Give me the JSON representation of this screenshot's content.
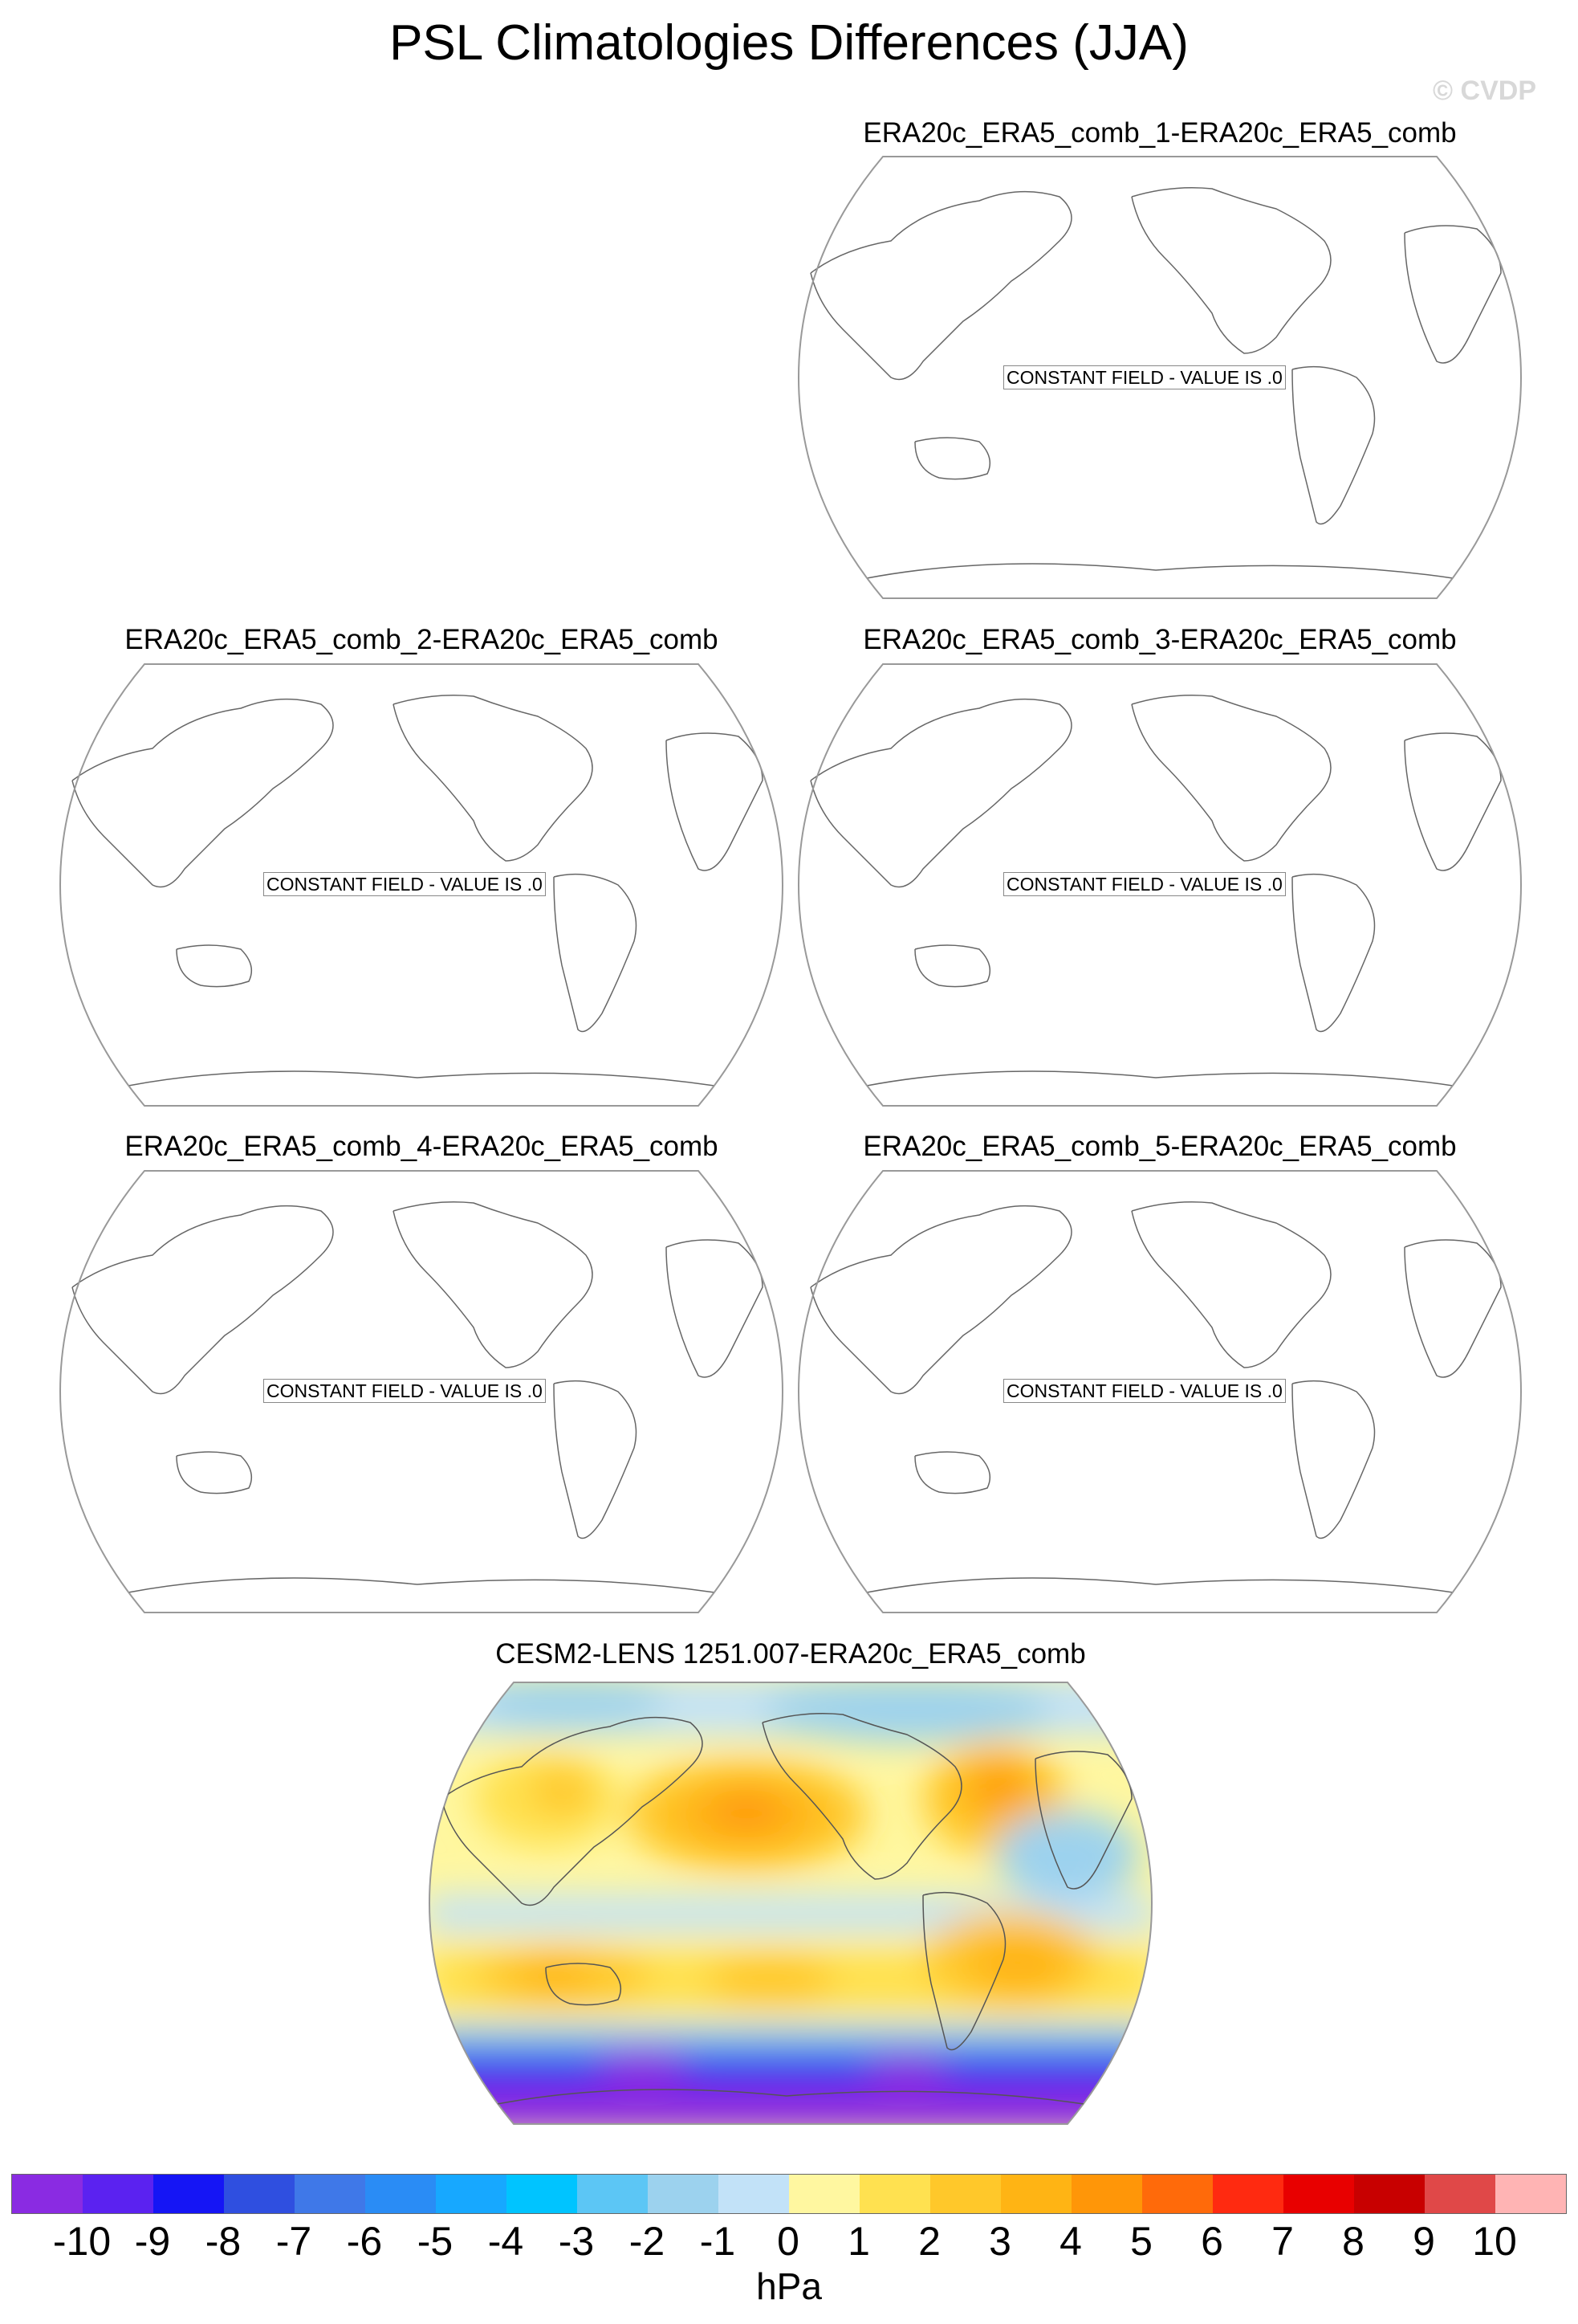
{
  "title": "PSL Climatologies Differences (JJA)",
  "copyright": "© CVDP",
  "panels": [
    {
      "title": "ERA20c_ERA5_comb_1-ERA20c_ERA5_comb",
      "note": "CONSTANT FIELD - VALUE IS .0"
    },
    {
      "title": "ERA20c_ERA5_comb_2-ERA20c_ERA5_comb",
      "note": "CONSTANT FIELD - VALUE IS .0"
    },
    {
      "title": "ERA20c_ERA5_comb_3-ERA20c_ERA5_comb",
      "note": "CONSTANT FIELD - VALUE IS .0"
    },
    {
      "title": "ERA20c_ERA5_comb_4-ERA20c_ERA5_comb",
      "note": "CONSTANT FIELD - VALUE IS .0"
    },
    {
      "title": "ERA20c_ERA5_comb_5-ERA20c_ERA5_comb",
      "note": "CONSTANT FIELD - VALUE IS .0"
    },
    {
      "title": "CESM2-LENS 1251.007-ERA20c_ERA5_comb",
      "note": ""
    }
  ],
  "colorbar": {
    "colors": [
      "#8a2be2",
      "#5b22f0",
      "#1515f5",
      "#2f4fe0",
      "#3f78e8",
      "#2a8cf5",
      "#17a8ff",
      "#00c4ff",
      "#5cc6f5",
      "#9cd2ee",
      "#c2e2f8",
      "#fff7a0",
      "#ffe150",
      "#ffc82a",
      "#ffb414",
      "#ff9608",
      "#ff6a0a",
      "#ff2a10",
      "#e80000",
      "#c80000",
      "#e04848",
      "#ffb4b4"
    ],
    "tick_labels": [
      "-10",
      "-9",
      "-8",
      "-7",
      "-6",
      "-5",
      "-4",
      "-3",
      "-2",
      "-1",
      "0",
      "1",
      "2",
      "3",
      "4",
      "5",
      "6",
      "7",
      "8",
      "9",
      "10"
    ],
    "units": "hPa"
  }
}
